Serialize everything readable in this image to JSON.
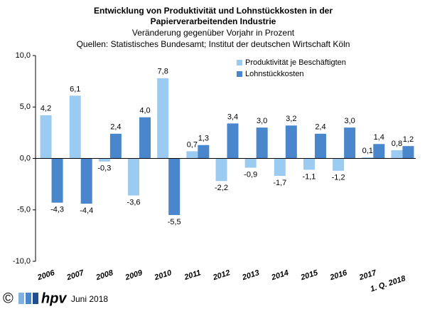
{
  "chart_data": {
    "type": "bar",
    "title": [
      "Entwicklung von Produktivität und Lohnstückkosten  in der",
      "Papierverarbeitenden Industrie"
    ],
    "subtitle": [
      "Veränderung  gegenüber  Vorjahr  in Prozent",
      "Quellen: Statistisches Bundesamt; Institut der deutschen Wirtschaft Köln"
    ],
    "categories": [
      "2006",
      "2007",
      "2008",
      "2009",
      "2010",
      "2011",
      "2012",
      "2013",
      "2014",
      "2015",
      "2016",
      "2017",
      "1. Q. 2018"
    ],
    "series": [
      {
        "name": "Produktivität je Beschäftigten",
        "color": "#9ccbf2",
        "values": [
          4.2,
          6.1,
          -0.3,
          -3.6,
          7.8,
          0.7,
          -2.2,
          -0.9,
          -1.7,
          -1.1,
          -1.2,
          0.1,
          0.8
        ],
        "value_labels": [
          "4,2",
          "6,1",
          "-0,3",
          "-3,6",
          "7,8",
          "0,7",
          "-2,2",
          "-0,9",
          "-1,7",
          "-1,1",
          "-1,2",
          "0,1",
          "0,8"
        ]
      },
      {
        "name": "Lohnstückkosten",
        "color": "#4a86cc",
        "values": [
          -4.3,
          -4.4,
          2.4,
          4.0,
          -5.5,
          1.3,
          3.4,
          3.0,
          3.2,
          2.4,
          3.0,
          1.4,
          1.2
        ],
        "value_labels": [
          "-4,3",
          "-4,4",
          "2,4",
          "4,0",
          "-5,5",
          "1,3",
          "3,4",
          "3,0",
          "3,2",
          "2,4",
          "3,0",
          "1,4",
          "1,2"
        ]
      }
    ],
    "ylim": [
      -10,
      10
    ],
    "yticks": [
      {
        "value": -10,
        "label": "-10,0"
      },
      {
        "value": -5,
        "label": "-5,0"
      },
      {
        "value": 0,
        "label": "0,0"
      },
      {
        "value": 5,
        "label": "5,0"
      },
      {
        "value": 10,
        "label": "10,0"
      }
    ],
    "legend": "top-right"
  },
  "footer": {
    "symbol": "©",
    "logo": "hpv",
    "date": "Juni 2018"
  }
}
